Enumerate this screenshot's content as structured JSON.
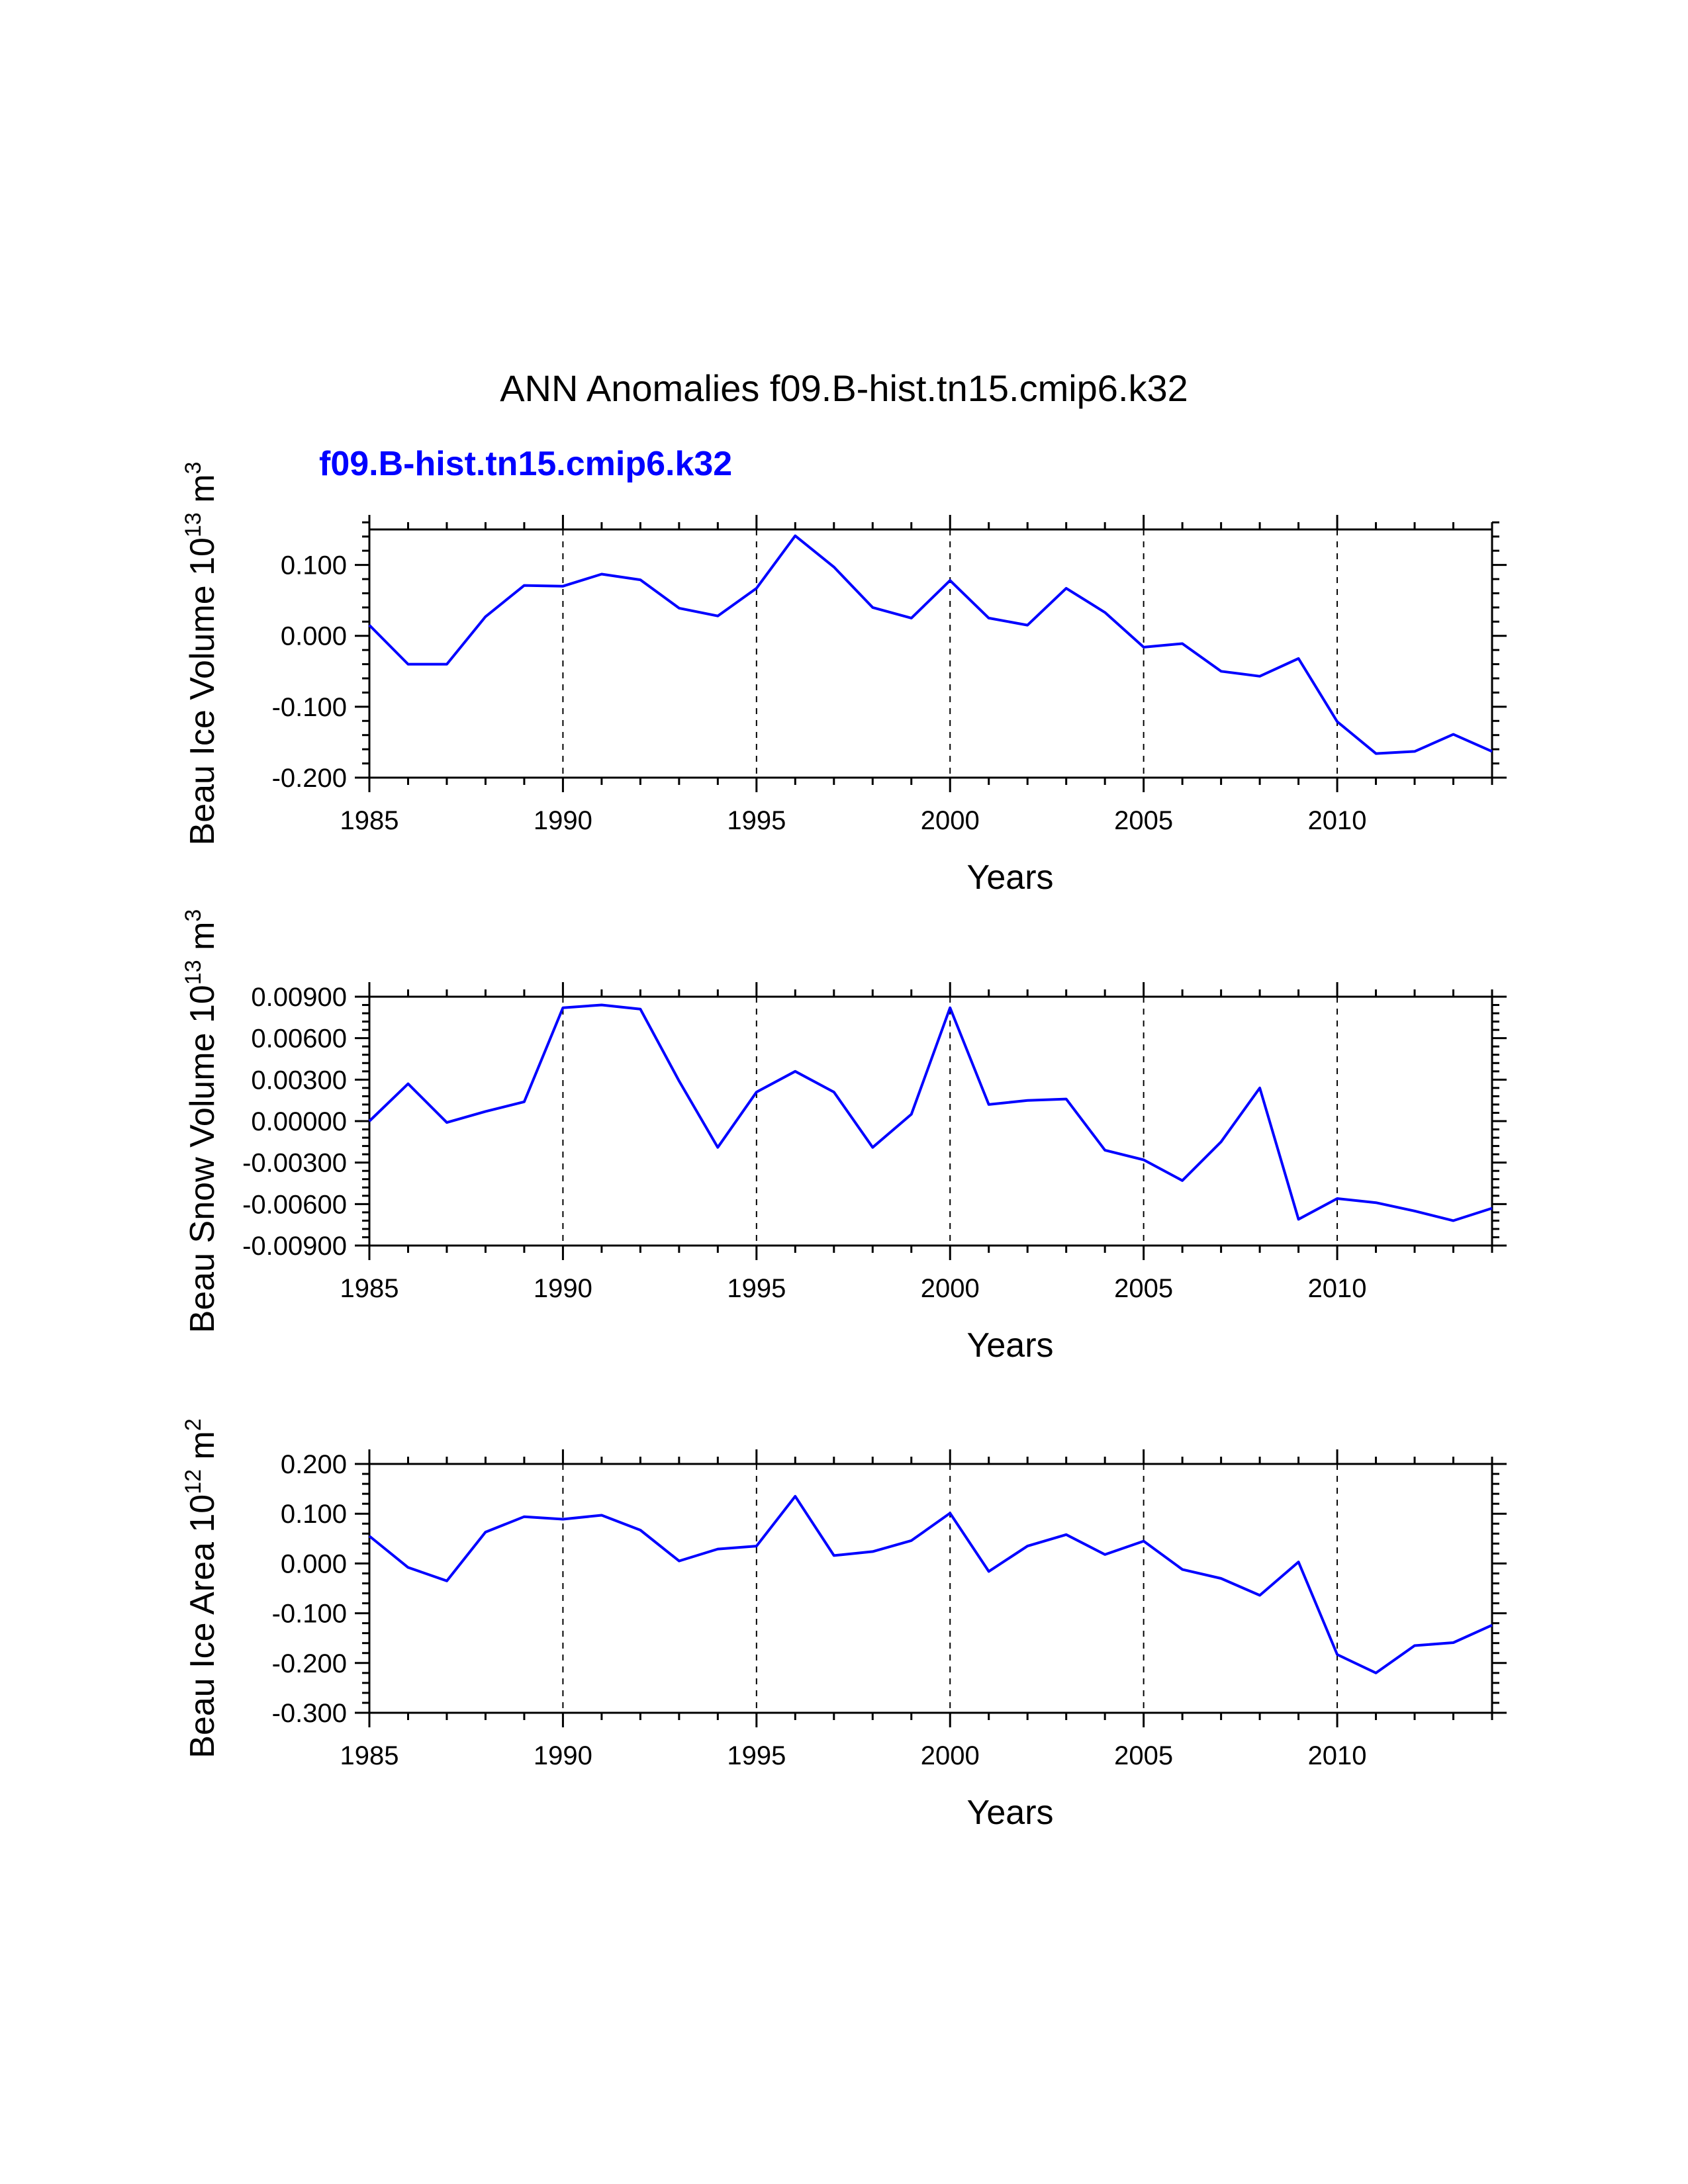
{
  "figure": {
    "title": "ANN Anomalies f09.B-hist.tn15.cmip6.k32",
    "run_label": "f09.B-hist.tn15.cmip6.k32",
    "line_color": "#0000ff"
  },
  "chart_data": [
    {
      "type": "line",
      "title": "",
      "xlabel": "Years",
      "ylabel": {
        "main": "Beau Ice Volume 10",
        "exponent": "13",
        "unit": " m",
        "unit_exponent": "3"
      },
      "xlim": [
        1985,
        2014
      ],
      "ylim": [
        -0.2,
        0.15
      ],
      "x_ticks": [
        1985,
        1990,
        1995,
        2000,
        2005,
        2010
      ],
      "x_tick_labels": [
        "1985",
        "1990",
        "1995",
        "2000",
        "2005",
        "2010"
      ],
      "y_ticks": [
        -0.2,
        -0.1,
        0.0,
        0.1
      ],
      "y_tick_labels": [
        "-0.200",
        "-0.100",
        "0.000",
        "0.100"
      ],
      "y_minor_step": 0.02,
      "grid_years": [
        1990,
        1995,
        2000,
        2005,
        2010
      ],
      "series": [
        {
          "name": "f09.B-hist.tn15.cmip6.k32",
          "x": [
            1985,
            1986,
            1987,
            1988,
            1989,
            1990,
            1991,
            1992,
            1993,
            1994,
            1995,
            1996,
            1997,
            1998,
            1999,
            2000,
            2001,
            2002,
            2003,
            2004,
            2005,
            2006,
            2007,
            2008,
            2009,
            2010,
            2011,
            2012,
            2013,
            2014
          ],
          "values": [
            0.015,
            -0.04,
            -0.04,
            0.027,
            0.071,
            0.07,
            0.087,
            0.079,
            0.039,
            0.028,
            0.067,
            0.141,
            0.097,
            0.04,
            0.025,
            0.078,
            0.025,
            0.015,
            0.067,
            0.033,
            -0.016,
            -0.011,
            -0.05,
            -0.057,
            -0.032,
            -0.121,
            -0.166,
            -0.163,
            -0.139,
            -0.163
          ]
        }
      ]
    },
    {
      "type": "line",
      "title": "",
      "xlabel": "Years",
      "ylabel": {
        "main": "Beau Snow Volume 10",
        "exponent": "13",
        "unit": " m",
        "unit_exponent": "3"
      },
      "xlim": [
        1985,
        2014
      ],
      "ylim": [
        -0.009,
        0.009
      ],
      "x_ticks": [
        1985,
        1990,
        1995,
        2000,
        2005,
        2010
      ],
      "x_tick_labels": [
        "1985",
        "1990",
        "1995",
        "2000",
        "2005",
        "2010"
      ],
      "y_ticks": [
        -0.009,
        -0.006,
        -0.003,
        0.0,
        0.003,
        0.006,
        0.009
      ],
      "y_tick_labels": [
        "-0.00900",
        "-0.00600",
        "-0.00300",
        "0.00000",
        "0.00300",
        "0.00600",
        "0.00900"
      ],
      "y_minor_step": 0.0006,
      "grid_years": [
        1990,
        1995,
        2000,
        2005,
        2010
      ],
      "series": [
        {
          "name": "f09.B-hist.tn15.cmip6.k32",
          "x": [
            1985,
            1986,
            1987,
            1988,
            1989,
            1990,
            1991,
            1992,
            1993,
            1994,
            1995,
            1996,
            1997,
            1998,
            1999,
            2000,
            2001,
            2002,
            2003,
            2004,
            2005,
            2006,
            2007,
            2008,
            2009,
            2010,
            2011,
            2012,
            2013,
            2014
          ],
          "values": [
            0.0,
            0.0027,
            -0.0001,
            0.0007,
            0.0014,
            0.0082,
            0.0084,
            0.0081,
            0.0029,
            -0.0019,
            0.0021,
            0.0036,
            0.0021,
            -0.0019,
            0.0005,
            0.0082,
            0.0012,
            0.0015,
            0.0016,
            -0.0021,
            -0.0028,
            -0.0043,
            -0.0015,
            0.0024,
            -0.0071,
            -0.0056,
            -0.0059,
            -0.0065,
            -0.0072,
            -0.0063
          ]
        }
      ]
    },
    {
      "type": "line",
      "title": "",
      "xlabel": "Years",
      "ylabel": {
        "main": "Beau Ice Area 10",
        "exponent": "12",
        "unit": " m",
        "unit_exponent": "2"
      },
      "xlim": [
        1985,
        2014
      ],
      "ylim": [
        -0.3,
        0.2
      ],
      "x_ticks": [
        1985,
        1990,
        1995,
        2000,
        2005,
        2010
      ],
      "x_tick_labels": [
        "1985",
        "1990",
        "1995",
        "2000",
        "2005",
        "2010"
      ],
      "y_ticks": [
        -0.3,
        -0.2,
        -0.1,
        0.0,
        0.1,
        0.2
      ],
      "y_tick_labels": [
        "-0.300",
        "-0.200",
        "-0.100",
        "0.000",
        "0.100",
        "0.200"
      ],
      "y_minor_step": 0.02,
      "grid_years": [
        1990,
        1995,
        2000,
        2005,
        2010
      ],
      "series": [
        {
          "name": "f09.B-hist.tn15.cmip6.k32",
          "x": [
            1985,
            1986,
            1987,
            1988,
            1989,
            1990,
            1991,
            1992,
            1993,
            1994,
            1995,
            1996,
            1997,
            1998,
            1999,
            2000,
            2001,
            2002,
            2003,
            2004,
            2005,
            2006,
            2007,
            2008,
            2009,
            2010,
            2011,
            2012,
            2013,
            2014
          ],
          "values": [
            0.055,
            -0.008,
            -0.035,
            0.063,
            0.094,
            0.089,
            0.097,
            0.067,
            0.005,
            0.029,
            0.035,
            0.135,
            0.016,
            0.024,
            0.046,
            0.101,
            -0.016,
            0.035,
            0.058,
            0.018,
            0.045,
            -0.012,
            -0.03,
            -0.064,
            0.003,
            -0.183,
            -0.22,
            -0.165,
            -0.159,
            -0.124
          ]
        }
      ]
    }
  ]
}
